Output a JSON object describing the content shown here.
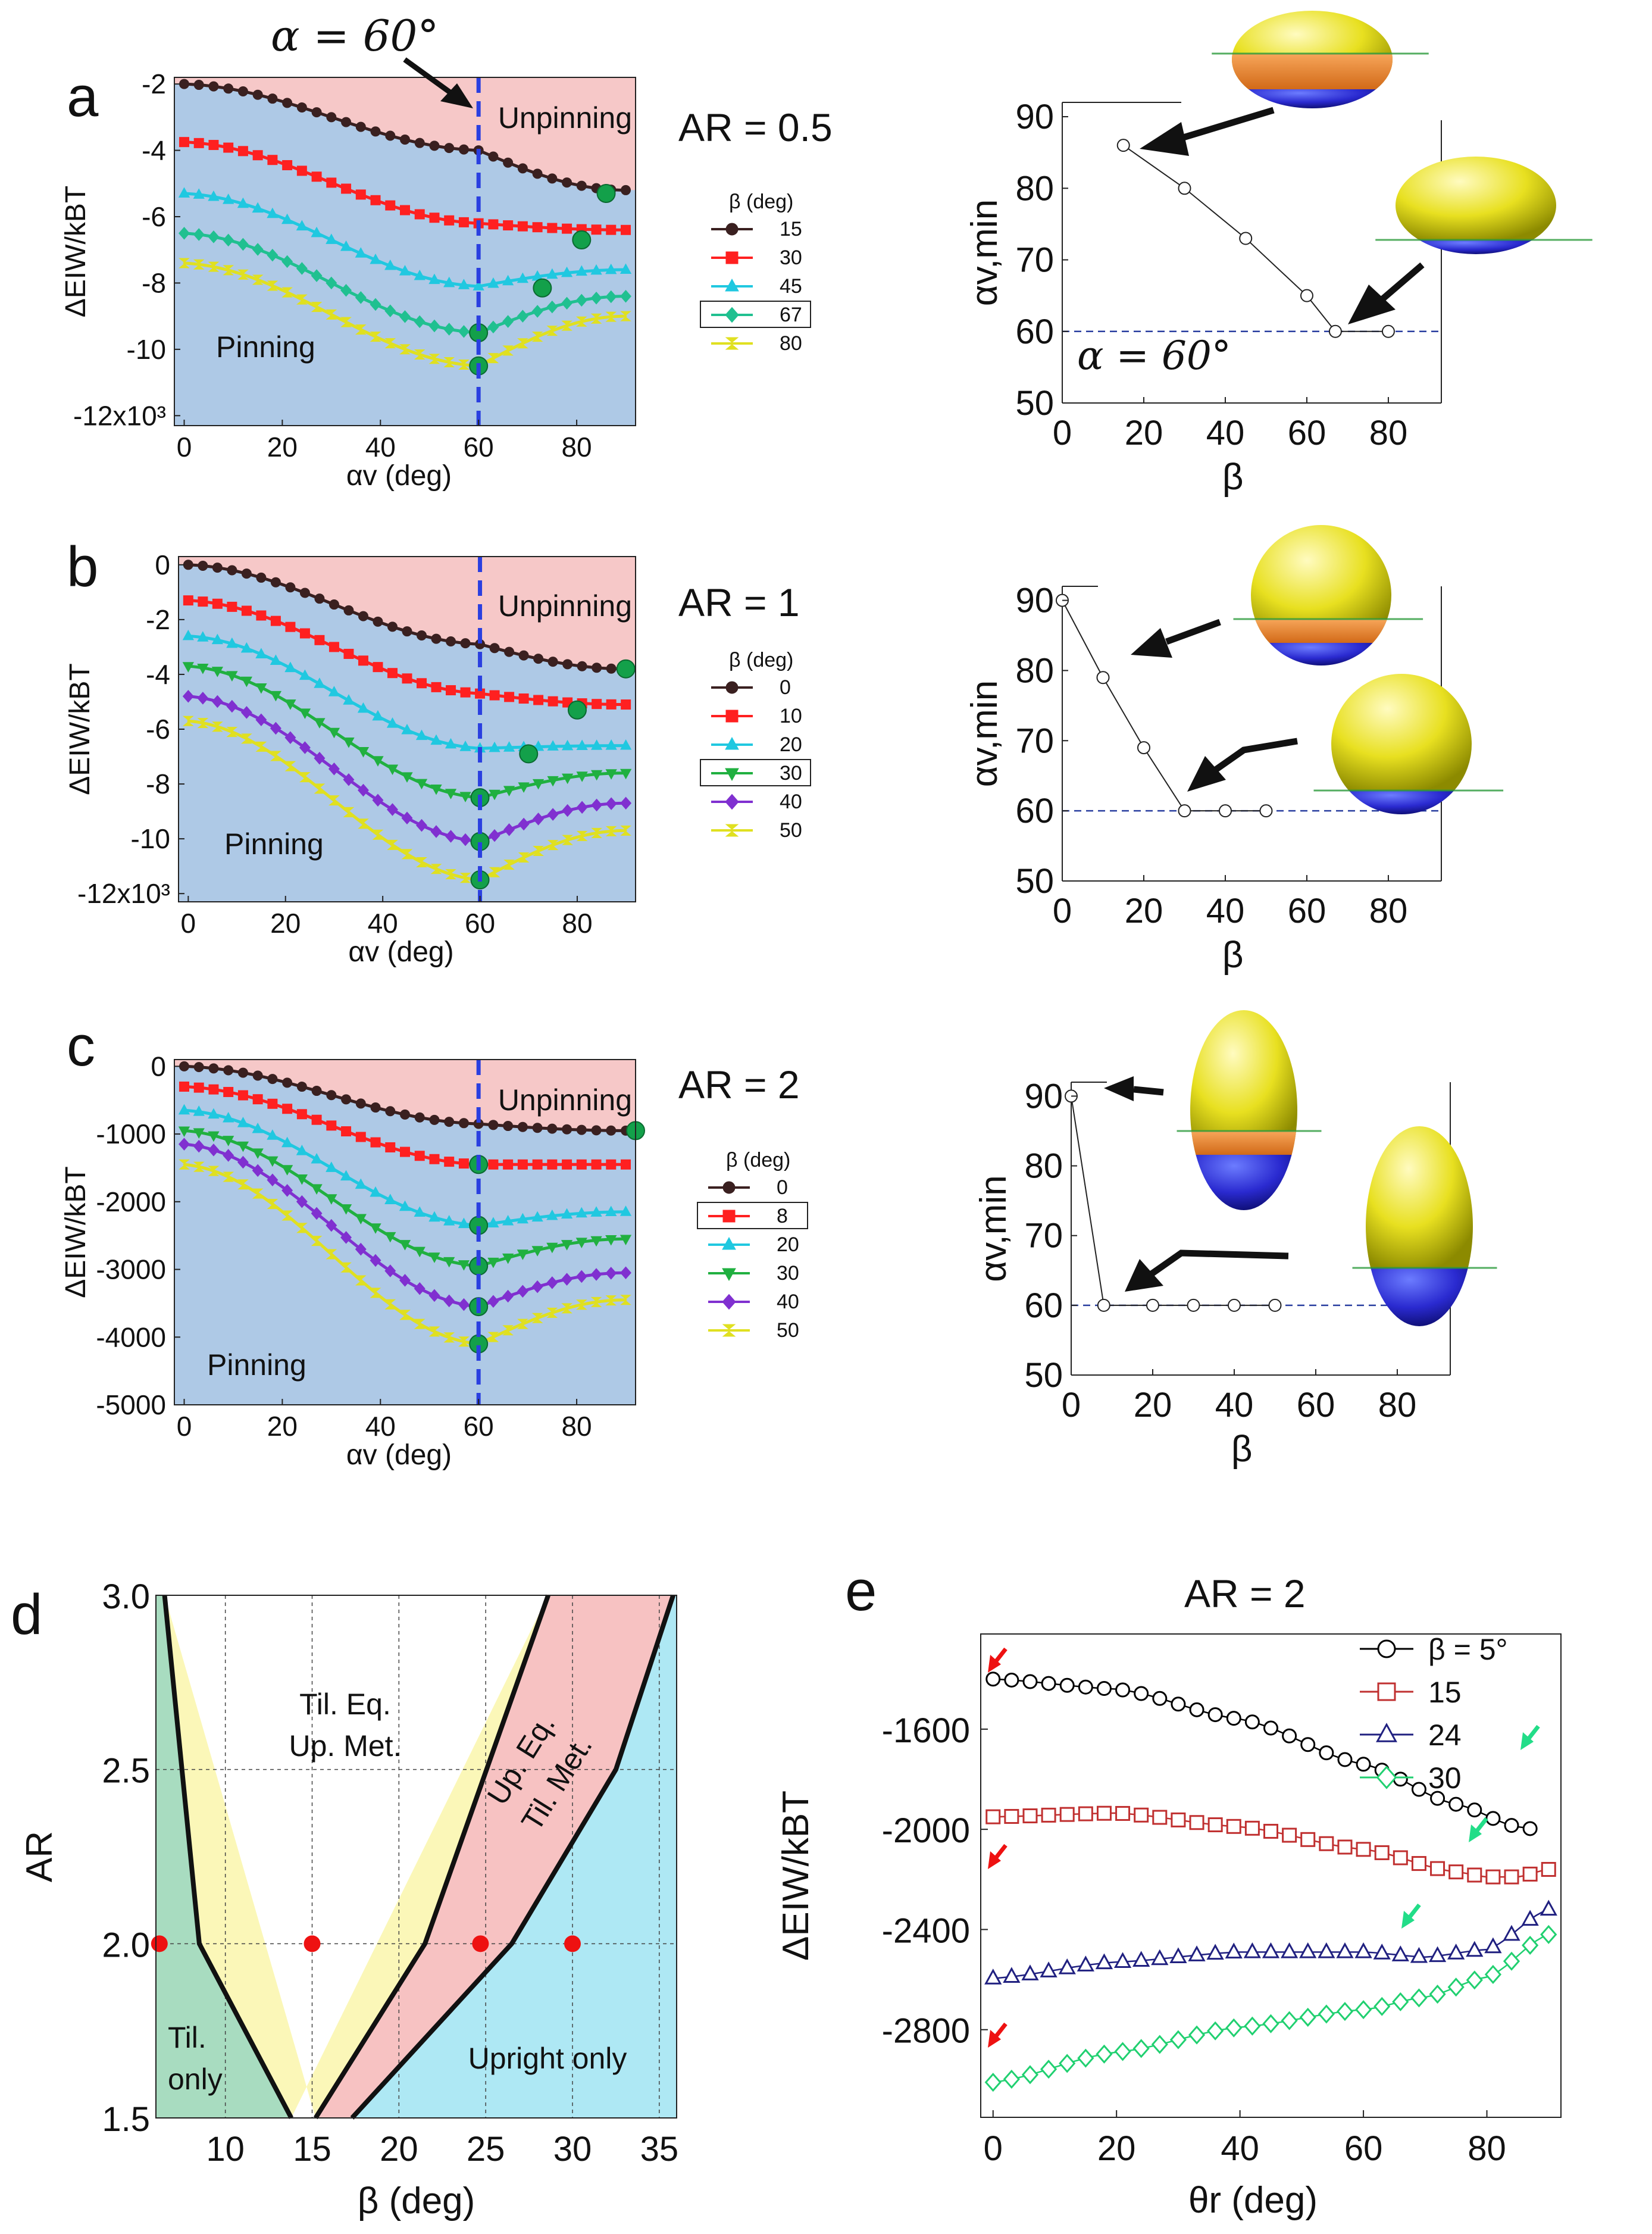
{
  "panels": {
    "a": {
      "letter": "a",
      "ar_label": "AR = 0.5",
      "unpinning": "Unpinning",
      "pinning": "Pinning",
      "alpha_annotation": "α = 60°",
      "xlabel": "αv (deg)",
      "ylabel": "ΔEIW/kBT"
    },
    "b": {
      "letter": "b",
      "ar_label": "AR = 1",
      "unpinning": "Unpinning",
      "pinning": "Pinning",
      "xlabel": "αv (deg)",
      "ylabel": "ΔEIW/kBT"
    },
    "c": {
      "letter": "c",
      "ar_label": "AR = 2",
      "unpinning": "Unpinning",
      "pinning": "Pinning",
      "xlabel": "αv (deg)",
      "ylabel": "ΔEIW/kBT"
    },
    "d": {
      "letter": "d",
      "xlabel": "β (deg)",
      "ylabel": "AR",
      "regions": [
        "Til. Eq.",
        "Up. Met.",
        "Up. Eq.",
        "Til. Met.",
        "Til.",
        "only",
        "Upright only"
      ]
    },
    "e": {
      "letter": "e",
      "title": "AR = 2",
      "xlabel": "θr (deg)",
      "ylabel": "ΔEIW/kBT"
    }
  },
  "colors": {
    "pink_region": "#f6c8c8",
    "blue_region": "#aec9e6",
    "dashed_line": "#2a3fe0",
    "marker_green": "#13a04a",
    "region_green": "#a8dcc0",
    "region_yellow": "#fbf7b8",
    "region_pink": "#f7c2c2",
    "region_cyan": "#aee8f4",
    "red_dot": "#ee1111"
  },
  "chart_data": [
    {
      "id": "a-left",
      "type": "line",
      "xlim": [
        -2,
        92
      ],
      "ylim": [
        -12300,
        -1800
      ],
      "xticks": [
        "0",
        "20",
        "40",
        "60",
        "80"
      ],
      "yticks": [
        "-2",
        "-4",
        "-6",
        "-8",
        "-10",
        "-12x10³"
      ],
      "legend_title": "β (deg)",
      "vline_x": 60,
      "series": [
        {
          "name": "15",
          "color": "#3a2020",
          "marker": "circle",
          "x_min": 0,
          "x_max": 90,
          "y0": -2000,
          "y60": -4000,
          "y90": -5200
        },
        {
          "name": "30",
          "color": "#ff2020",
          "marker": "square",
          "x_min": 0,
          "x_max": 90,
          "y0": -3750,
          "y60": -6200,
          "y90": -6400
        },
        {
          "name": "45",
          "color": "#20c8e0",
          "marker": "triangle",
          "x_min": 0,
          "x_max": 90,
          "y0": -5300,
          "y60": -8100,
          "y90": -7600
        },
        {
          "name": "67",
          "color": "#20c090",
          "marker": "diamond",
          "x_min": 0,
          "x_max": 90,
          "y0": -6500,
          "y60": -9500,
          "y90": -8400
        },
        {
          "name": "80",
          "color": "#e0e020",
          "marker": "bowtie",
          "x_min": 0,
          "x_max": 90,
          "y0": -7400,
          "y60": -10500,
          "y90": -9000
        }
      ],
      "minima": [
        [
          86,
          -5300
        ],
        [
          81,
          -6700
        ],
        [
          73,
          -8150
        ],
        [
          60,
          -9500
        ],
        [
          60,
          -10500
        ]
      ]
    },
    {
      "id": "b-left",
      "type": "line",
      "xlim": [
        -2,
        92
      ],
      "ylim": [
        -12300,
        300
      ],
      "xticks": [
        "0",
        "20",
        "40",
        "60",
        "80"
      ],
      "yticks": [
        "0",
        "-2",
        "-4",
        "-6",
        "-8",
        "-10",
        "-12x10³"
      ],
      "legend_title": "β (deg)",
      "vline_x": 60,
      "series": [
        {
          "name": "0",
          "color": "#3a2020",
          "marker": "circle",
          "x_min": 0,
          "x_max": 90,
          "y0": 0,
          "y60": -2900,
          "y90": -3800
        },
        {
          "name": "10",
          "color": "#ff2020",
          "marker": "square",
          "x_min": 0,
          "x_max": 90,
          "y0": -1300,
          "y60": -4700,
          "y90": -5100
        },
        {
          "name": "20",
          "color": "#20c8e0",
          "marker": "triangle",
          "x_min": 0,
          "x_max": 90,
          "y0": -2600,
          "y60": -6700,
          "y90": -6600
        },
        {
          "name": "30",
          "color": "#20b040",
          "marker": "triangle-down",
          "x_min": 0,
          "x_max": 90,
          "y0": -3700,
          "y60": -8500,
          "y90": -7600
        },
        {
          "name": "40",
          "color": "#8030d0",
          "marker": "diamond",
          "x_min": 0,
          "x_max": 90,
          "y0": -4800,
          "y60": -10100,
          "y90": -8700
        },
        {
          "name": "50",
          "color": "#e0e020",
          "marker": "bowtie",
          "x_min": 0,
          "x_max": 90,
          "y0": -5700,
          "y60": -11500,
          "y90": -9700
        }
      ],
      "minima": [
        [
          90,
          -3800
        ],
        [
          80,
          -5300
        ],
        [
          70,
          -6900
        ],
        [
          60,
          -8500
        ],
        [
          60,
          -10100
        ],
        [
          60,
          -11500
        ]
      ]
    },
    {
      "id": "c-left",
      "type": "line",
      "xlim": [
        -2,
        92
      ],
      "ylim": [
        -5000,
        100
      ],
      "xticks": [
        "0",
        "20",
        "40",
        "60",
        "80"
      ],
      "yticks": [
        "0",
        "-1000",
        "-2000",
        "-3000",
        "-4000",
        "-5000"
      ],
      "legend_title": "β (deg)",
      "vline_x": 60,
      "series": [
        {
          "name": "0",
          "color": "#3a2020",
          "marker": "circle",
          "x_min": 0,
          "x_max": 90,
          "y0": 0,
          "y60": -850,
          "y90": -950
        },
        {
          "name": "8",
          "color": "#ff2020",
          "marker": "square",
          "x_min": 0,
          "x_max": 90,
          "y0": -300,
          "y60": -1450,
          "y90": -1450
        },
        {
          "name": "20",
          "color": "#20c8e0",
          "marker": "triangle",
          "x_min": 0,
          "x_max": 90,
          "y0": -650,
          "y60": -2350,
          "y90": -2150
        },
        {
          "name": "30",
          "color": "#20b040",
          "marker": "triangle-down",
          "x_min": 0,
          "x_max": 90,
          "y0": -950,
          "y60": -2950,
          "y90": -2550
        },
        {
          "name": "40",
          "color": "#8030d0",
          "marker": "diamond",
          "x_min": 0,
          "x_max": 90,
          "y0": -1150,
          "y60": -3550,
          "y90": -3050
        },
        {
          "name": "50",
          "color": "#e0e020",
          "marker": "bowtie",
          "x_min": 0,
          "x_max": 90,
          "y0": -1450,
          "y60": -4100,
          "y90": -3450
        }
      ],
      "minima": [
        [
          92,
          -950
        ],
        [
          60,
          -1450
        ],
        [
          60,
          -2350
        ],
        [
          60,
          -2950
        ],
        [
          60,
          -3550
        ],
        [
          60,
          -4100
        ]
      ]
    },
    {
      "id": "a-right",
      "type": "line",
      "xlim": [
        0,
        93
      ],
      "ylim": [
        50,
        92
      ],
      "xticks": [
        "0",
        "20",
        "40",
        "60",
        "80"
      ],
      "yticks": [
        "50",
        "60",
        "70",
        "80",
        "90"
      ],
      "xlabel": "β",
      "ylabel": "αv,min",
      "points": [
        [
          15,
          86
        ],
        [
          30,
          80
        ],
        [
          45,
          73
        ],
        [
          60,
          65
        ],
        [
          67,
          60
        ],
        [
          80,
          60
        ]
      ],
      "hline_y": 60
    },
    {
      "id": "b-right",
      "type": "line",
      "xlim": [
        0,
        93
      ],
      "ylim": [
        50,
        92
      ],
      "xticks": [
        "0",
        "20",
        "40",
        "60",
        "80"
      ],
      "yticks": [
        "50",
        "60",
        "70",
        "80",
        "90"
      ],
      "xlabel": "β",
      "ylabel": "αv,min",
      "points": [
        [
          0,
          90
        ],
        [
          10,
          79
        ],
        [
          20,
          69
        ],
        [
          30,
          60
        ],
        [
          40,
          60
        ],
        [
          50,
          60
        ]
      ],
      "hline_y": 60
    },
    {
      "id": "c-right",
      "type": "line",
      "xlim": [
        0,
        93
      ],
      "ylim": [
        50,
        92
      ],
      "xticks": [
        "0",
        "20",
        "40",
        "60",
        "80"
      ],
      "yticks": [
        "50",
        "60",
        "70",
        "80",
        "90"
      ],
      "xlabel": "β",
      "ylabel": "αv,min",
      "points": [
        [
          0,
          90
        ],
        [
          8,
          60
        ],
        [
          20,
          60
        ],
        [
          30,
          60
        ],
        [
          40,
          60
        ],
        [
          50,
          60
        ]
      ],
      "hline_y": 60
    },
    {
      "id": "d",
      "type": "area",
      "xlim": [
        6,
        36
      ],
      "ylim": [
        1.5,
        3.0
      ],
      "xticks": [
        "10",
        "15",
        "20",
        "25",
        "30",
        "35"
      ],
      "yticks": [
        "1.5",
        "2.0",
        "2.5",
        "3.0"
      ],
      "boundaries": [
        [
          [
            6.5,
            3.0
          ],
          [
            8.5,
            2.0
          ],
          [
            13.8,
            1.5
          ]
        ],
        [
          [
            15.2,
            1.5
          ],
          [
            21.5,
            2.0
          ],
          [
            28.6,
            3.0
          ]
        ],
        [
          [
            17.3,
            1.5
          ],
          [
            26.5,
            2.0
          ],
          [
            32.5,
            2.5
          ],
          [
            35.8,
            3.0
          ]
        ]
      ],
      "red_points": [
        [
          6.2,
          2.0
        ],
        [
          15,
          2.0
        ],
        [
          24.7,
          2.0
        ],
        [
          30,
          2.0
        ]
      ]
    },
    {
      "id": "e",
      "type": "line",
      "xlim": [
        -2,
        92
      ],
      "ylim": [
        -3150,
        -1220
      ],
      "xticks": [
        "0",
        "20",
        "40",
        "60",
        "80"
      ],
      "yticks": [
        "-1600",
        "-2000",
        "-2400",
        "-2800"
      ],
      "series": [
        {
          "name": "β = 5°",
          "color": "#000000",
          "marker": "circle",
          "points": [
            [
              0,
              -1400
            ],
            [
              20,
              -1440
            ],
            [
              40,
              -1560
            ],
            [
              60,
              -1740
            ],
            [
              75,
              -1900
            ],
            [
              85,
              -1990
            ],
            [
              88,
              -2000
            ]
          ]
        },
        {
          "name": "15",
          "color": "#c03030",
          "marker": "square",
          "points": [
            [
              0,
              -1950
            ],
            [
              20,
              -1935
            ],
            [
              40,
              -1990
            ],
            [
              60,
              -2080
            ],
            [
              75,
              -2170
            ],
            [
              80,
              -2190
            ],
            [
              85,
              -2190
            ],
            [
              90,
              -2160
            ]
          ]
        },
        {
          "name": "24",
          "color": "#202080",
          "marker": "triangle",
          "points": [
            [
              0,
              -2595
            ],
            [
              20,
              -2530
            ],
            [
              40,
              -2490
            ],
            [
              60,
              -2490
            ],
            [
              70,
              -2510
            ],
            [
              80,
              -2480
            ],
            [
              90,
              -2320
            ]
          ]
        },
        {
          "name": "30",
          "color": "#20d070",
          "marker": "diamond",
          "points": [
            [
              0,
              -3010
            ],
            [
              20,
              -2890
            ],
            [
              40,
              -2790
            ],
            [
              60,
              -2720
            ],
            [
              70,
              -2670
            ],
            [
              80,
              -2590
            ],
            [
              90,
              -2420
            ]
          ]
        }
      ]
    }
  ]
}
